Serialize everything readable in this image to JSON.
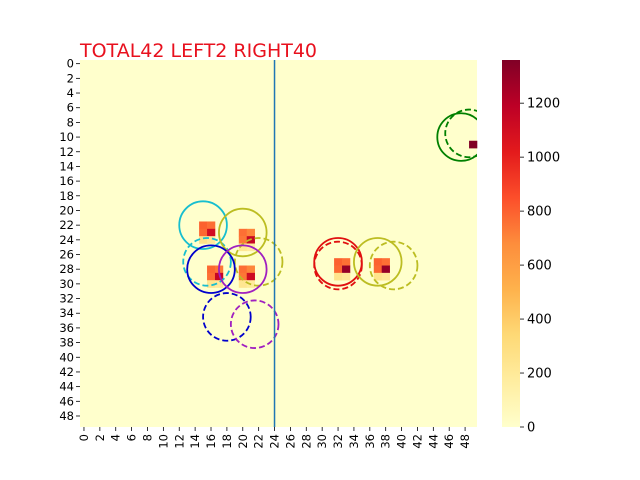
{
  "title": "TOTAL42  LEFT2 RIGHT40",
  "colors": {
    "title": "#e8101e",
    "background_cell": "#ffffcc",
    "divider": "#1f77b4"
  },
  "chart_data": {
    "type": "heatmap",
    "title": "TOTAL42  LEFT2 RIGHT40",
    "grid": "50x50",
    "x_ticks": [
      "0",
      "2",
      "4",
      "6",
      "8",
      "10",
      "12",
      "14",
      "16",
      "18",
      "20",
      "22",
      "24",
      "26",
      "28",
      "30",
      "32",
      "34",
      "36",
      "38",
      "40",
      "42",
      "44",
      "46",
      "48"
    ],
    "y_ticks": [
      "0",
      "2",
      "4",
      "6",
      "8",
      "10",
      "12",
      "14",
      "16",
      "18",
      "20",
      "22",
      "24",
      "26",
      "28",
      "30",
      "32",
      "34",
      "36",
      "38",
      "40",
      "42",
      "44",
      "46",
      "48"
    ],
    "colorbar": {
      "min": 0,
      "max": 1360,
      "ticks": [
        0,
        200,
        400,
        600,
        800,
        1000,
        1200
      ],
      "colormap": "YlOrRd"
    },
    "divider_x": 24.5,
    "hotspots": [
      {
        "name": "spot-a",
        "cells": [
          {
            "x": 15,
            "y": 22,
            "v": 800
          },
          {
            "x": 16,
            "y": 22,
            "v": 760
          },
          {
            "x": 15,
            "y": 23,
            "v": 780
          },
          {
            "x": 16,
            "y": 23,
            "v": 1100
          },
          {
            "x": 15,
            "y": 24,
            "v": 260
          },
          {
            "x": 16,
            "y": 24,
            "v": 200
          }
        ]
      },
      {
        "name": "spot-b",
        "cells": [
          {
            "x": 20,
            "y": 23,
            "v": 760
          },
          {
            "x": 21,
            "y": 23,
            "v": 700
          },
          {
            "x": 20,
            "y": 24,
            "v": 740
          },
          {
            "x": 21,
            "y": 24,
            "v": 1150
          },
          {
            "x": 20,
            "y": 25,
            "v": 220
          },
          {
            "x": 21,
            "y": 25,
            "v": 180
          }
        ]
      },
      {
        "name": "spot-c",
        "cells": [
          {
            "x": 16,
            "y": 28,
            "v": 780
          },
          {
            "x": 17,
            "y": 28,
            "v": 740
          },
          {
            "x": 16,
            "y": 29,
            "v": 760
          },
          {
            "x": 17,
            "y": 29,
            "v": 1150
          },
          {
            "x": 16,
            "y": 30,
            "v": 240
          },
          {
            "x": 17,
            "y": 30,
            "v": 200
          }
        ]
      },
      {
        "name": "spot-d",
        "cells": [
          {
            "x": 20,
            "y": 28,
            "v": 760
          },
          {
            "x": 21,
            "y": 28,
            "v": 700
          },
          {
            "x": 20,
            "y": 29,
            "v": 740
          },
          {
            "x": 21,
            "y": 29,
            "v": 1120
          },
          {
            "x": 20,
            "y": 30,
            "v": 230
          },
          {
            "x": 21,
            "y": 30,
            "v": 190
          }
        ]
      },
      {
        "name": "spot-e",
        "cells": [
          {
            "x": 32,
            "y": 27,
            "v": 800
          },
          {
            "x": 33,
            "y": 27,
            "v": 760
          },
          {
            "x": 32,
            "y": 28,
            "v": 780
          },
          {
            "x": 33,
            "y": 28,
            "v": 1300
          },
          {
            "x": 32,
            "y": 29,
            "v": 250
          },
          {
            "x": 33,
            "y": 29,
            "v": 210
          }
        ]
      },
      {
        "name": "spot-f",
        "cells": [
          {
            "x": 37,
            "y": 27,
            "v": 800
          },
          {
            "x": 38,
            "y": 27,
            "v": 760
          },
          {
            "x": 37,
            "y": 28,
            "v": 780
          },
          {
            "x": 38,
            "y": 28,
            "v": 1300
          },
          {
            "x": 37,
            "y": 29,
            "v": 250
          },
          {
            "x": 38,
            "y": 29,
            "v": 210
          }
        ]
      },
      {
        "name": "spot-g",
        "cells": [
          {
            "x": 49,
            "y": 11,
            "v": 1360
          }
        ]
      }
    ],
    "circles": [
      {
        "name": "circle-cyan-solid",
        "cx": 15.5,
        "cy": 22.5,
        "r": 3.0,
        "color": "#17becf",
        "style": "solid"
      },
      {
        "name": "circle-cyan-dashed",
        "cx": 16.0,
        "cy": 27.5,
        "r": 3.0,
        "color": "#17becf",
        "style": "dashed"
      },
      {
        "name": "circle-olive-solid-1",
        "cx": 20.5,
        "cy": 23.5,
        "r": 3.0,
        "color": "#bcbd22",
        "style": "solid"
      },
      {
        "name": "circle-olive-dashed-1",
        "cx": 22.5,
        "cy": 27.5,
        "r": 3.0,
        "color": "#bcbd22",
        "style": "dashed"
      },
      {
        "name": "circle-blue-solid",
        "cx": 16.5,
        "cy": 28.5,
        "r": 3.0,
        "color": "#0000cc",
        "style": "solid"
      },
      {
        "name": "circle-blue-dashed",
        "cx": 18.5,
        "cy": 35.0,
        "r": 3.0,
        "color": "#0000cc",
        "style": "dashed"
      },
      {
        "name": "circle-purple-solid",
        "cx": 20.5,
        "cy": 28.5,
        "r": 3.0,
        "color": "#a020c0",
        "style": "solid"
      },
      {
        "name": "circle-purple-dashed",
        "cx": 22.0,
        "cy": 36.0,
        "r": 3.0,
        "color": "#a020c0",
        "style": "dashed"
      },
      {
        "name": "circle-red-solid",
        "cx": 32.5,
        "cy": 27.5,
        "r": 3.0,
        "color": "#e01010",
        "style": "solid"
      },
      {
        "name": "circle-red-dashed",
        "cx": 32.5,
        "cy": 28.0,
        "r": 3.0,
        "color": "#e01010",
        "style": "dashed"
      },
      {
        "name": "circle-olive-solid-2",
        "cx": 37.5,
        "cy": 27.5,
        "r": 3.0,
        "color": "#bcbd22",
        "style": "solid"
      },
      {
        "name": "circle-olive-dashed-2",
        "cx": 39.5,
        "cy": 28.0,
        "r": 3.0,
        "color": "#bcbd22",
        "style": "dashed"
      },
      {
        "name": "circle-green-solid",
        "cx": 48.0,
        "cy": 10.5,
        "r": 3.0,
        "color": "#008000",
        "style": "solid"
      },
      {
        "name": "circle-green-dashed",
        "cx": 49.0,
        "cy": 10.0,
        "r": 3.0,
        "color": "#008000",
        "style": "dashed"
      }
    ]
  }
}
